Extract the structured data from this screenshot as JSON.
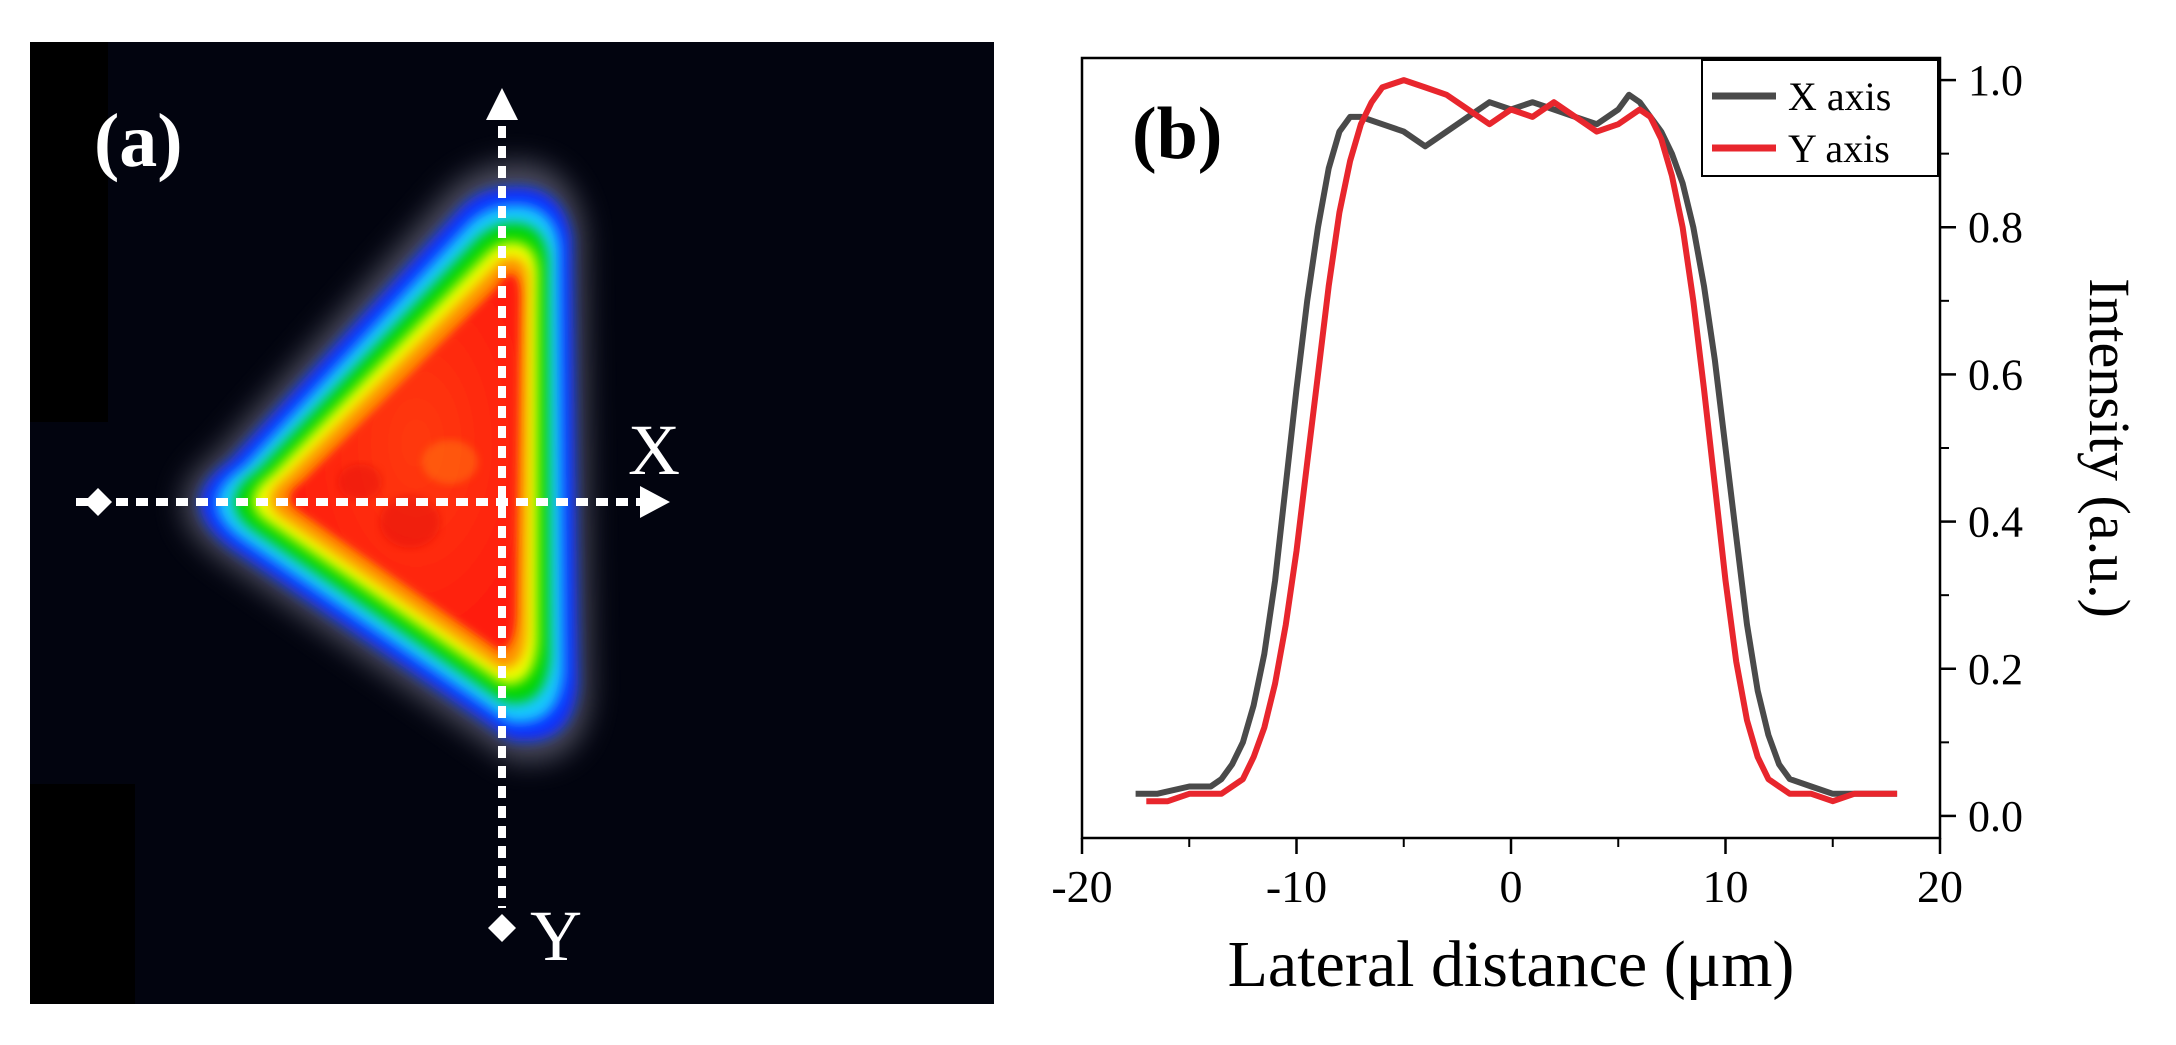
{
  "panel_a": {
    "label": "(a)",
    "x_axis_label": "X",
    "y_axis_label": "Y",
    "colors": {
      "background": "#02040f",
      "halo": "#8a8aa0",
      "blue": "#1030ff",
      "cyan": "#12c8ff",
      "green": "#00d400",
      "yellow": "#f0ff00",
      "orange": "#ff8a00",
      "red": "#ff1a0a",
      "marker": "#ffffff"
    }
  },
  "chart_data": {
    "type": "line",
    "panel_label": "(b)",
    "title": "",
    "xlabel": "Lateral distance (μm)",
    "ylabel": "Intensity (a.u.)",
    "xlim": [
      -20,
      20
    ],
    "ylim": [
      -0.03,
      1.03
    ],
    "x_ticks": [
      -20,
      -10,
      0,
      10,
      20
    ],
    "x_tick_labels": [
      "-20",
      "-10",
      "0",
      "10",
      "20"
    ],
    "y_ticks": [
      0.0,
      0.2,
      0.4,
      0.6,
      0.8,
      1.0
    ],
    "y_tick_labels": [
      "0.0",
      "0.2",
      "0.4",
      "0.6",
      "0.8",
      "1.0"
    ],
    "y_axis_side": "right",
    "grid": false,
    "legend_position": "top-right",
    "series": [
      {
        "name": "X axis",
        "color": "#4a4a4a",
        "x": [
          -17.5,
          -16.5,
          -15,
          -14,
          -13.5,
          -13,
          -12.5,
          -12,
          -11.5,
          -11,
          -10.5,
          -10,
          -9.5,
          -9,
          -8.5,
          -8,
          -7.5,
          -7,
          -6,
          -5,
          -4,
          -3,
          -2,
          -1,
          0,
          1,
          2,
          3,
          4,
          5,
          5.5,
          6,
          6.5,
          7,
          7.5,
          8,
          8.5,
          9,
          9.5,
          10,
          10.5,
          11,
          11.5,
          12,
          12.5,
          13,
          14,
          15,
          16,
          17,
          18
        ],
        "y": [
          0.03,
          0.03,
          0.04,
          0.04,
          0.05,
          0.07,
          0.1,
          0.15,
          0.22,
          0.32,
          0.45,
          0.58,
          0.7,
          0.8,
          0.88,
          0.93,
          0.95,
          0.95,
          0.94,
          0.93,
          0.91,
          0.93,
          0.95,
          0.97,
          0.96,
          0.97,
          0.96,
          0.95,
          0.94,
          0.96,
          0.98,
          0.97,
          0.95,
          0.93,
          0.9,
          0.86,
          0.8,
          0.72,
          0.62,
          0.5,
          0.38,
          0.26,
          0.17,
          0.11,
          0.07,
          0.05,
          0.04,
          0.03,
          0.03,
          0.03,
          0.03
        ]
      },
      {
        "name": "Y axis",
        "color": "#e8262d",
        "x": [
          -17,
          -16,
          -15,
          -14,
          -13.5,
          -13,
          -12.5,
          -12,
          -11.5,
          -11,
          -10.5,
          -10,
          -9.5,
          -9,
          -8.5,
          -8,
          -7.5,
          -7,
          -6.5,
          -6,
          -5,
          -4,
          -3,
          -2,
          -1,
          0,
          1,
          2,
          3,
          4,
          5,
          6,
          6.5,
          7,
          7.5,
          8,
          8.5,
          9,
          9.5,
          10,
          10.5,
          11,
          11.5,
          12,
          12.5,
          13,
          14,
          15,
          16,
          17,
          18
        ],
        "y": [
          0.02,
          0.02,
          0.03,
          0.03,
          0.03,
          0.04,
          0.05,
          0.08,
          0.12,
          0.18,
          0.26,
          0.36,
          0.48,
          0.6,
          0.72,
          0.82,
          0.89,
          0.94,
          0.97,
          0.99,
          1.0,
          0.99,
          0.98,
          0.96,
          0.94,
          0.96,
          0.95,
          0.97,
          0.95,
          0.93,
          0.94,
          0.96,
          0.95,
          0.92,
          0.87,
          0.8,
          0.7,
          0.58,
          0.45,
          0.32,
          0.21,
          0.13,
          0.08,
          0.05,
          0.04,
          0.03,
          0.03,
          0.02,
          0.03,
          0.03,
          0.03
        ]
      }
    ]
  }
}
